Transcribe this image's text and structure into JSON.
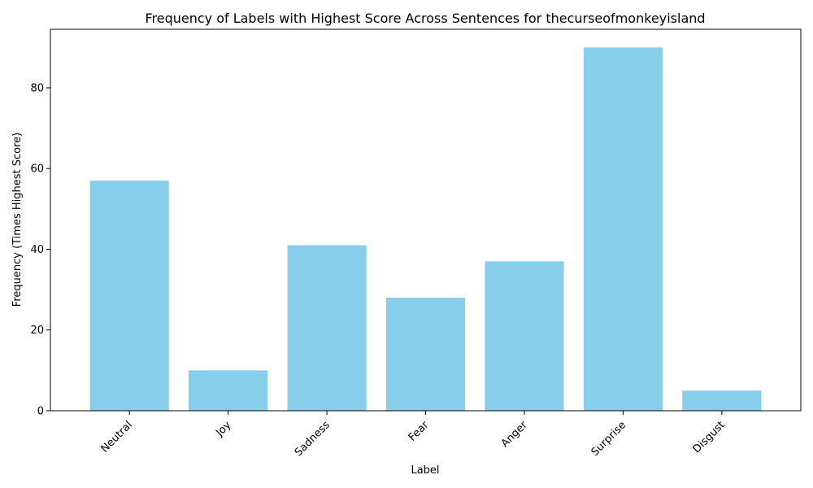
{
  "chart_data": {
    "type": "bar",
    "title": "Frequency of Labels with Highest Score Across Sentences for thecurseofmonkeyisland",
    "xlabel": "Label",
    "ylabel": "Frequency (Times Highest Score)",
    "categories": [
      "Neutral",
      "Joy",
      "Sadness",
      "Fear",
      "Anger",
      "Surprise",
      "Disgust"
    ],
    "values": [
      57,
      10,
      41,
      28,
      37,
      90,
      5
    ],
    "ylim": [
      0,
      94.5
    ],
    "yticks": [
      0,
      20,
      40,
      60,
      80
    ],
    "bar_color": "#87ceeb",
    "grid": false,
    "x_tick_rotation": 45
  }
}
